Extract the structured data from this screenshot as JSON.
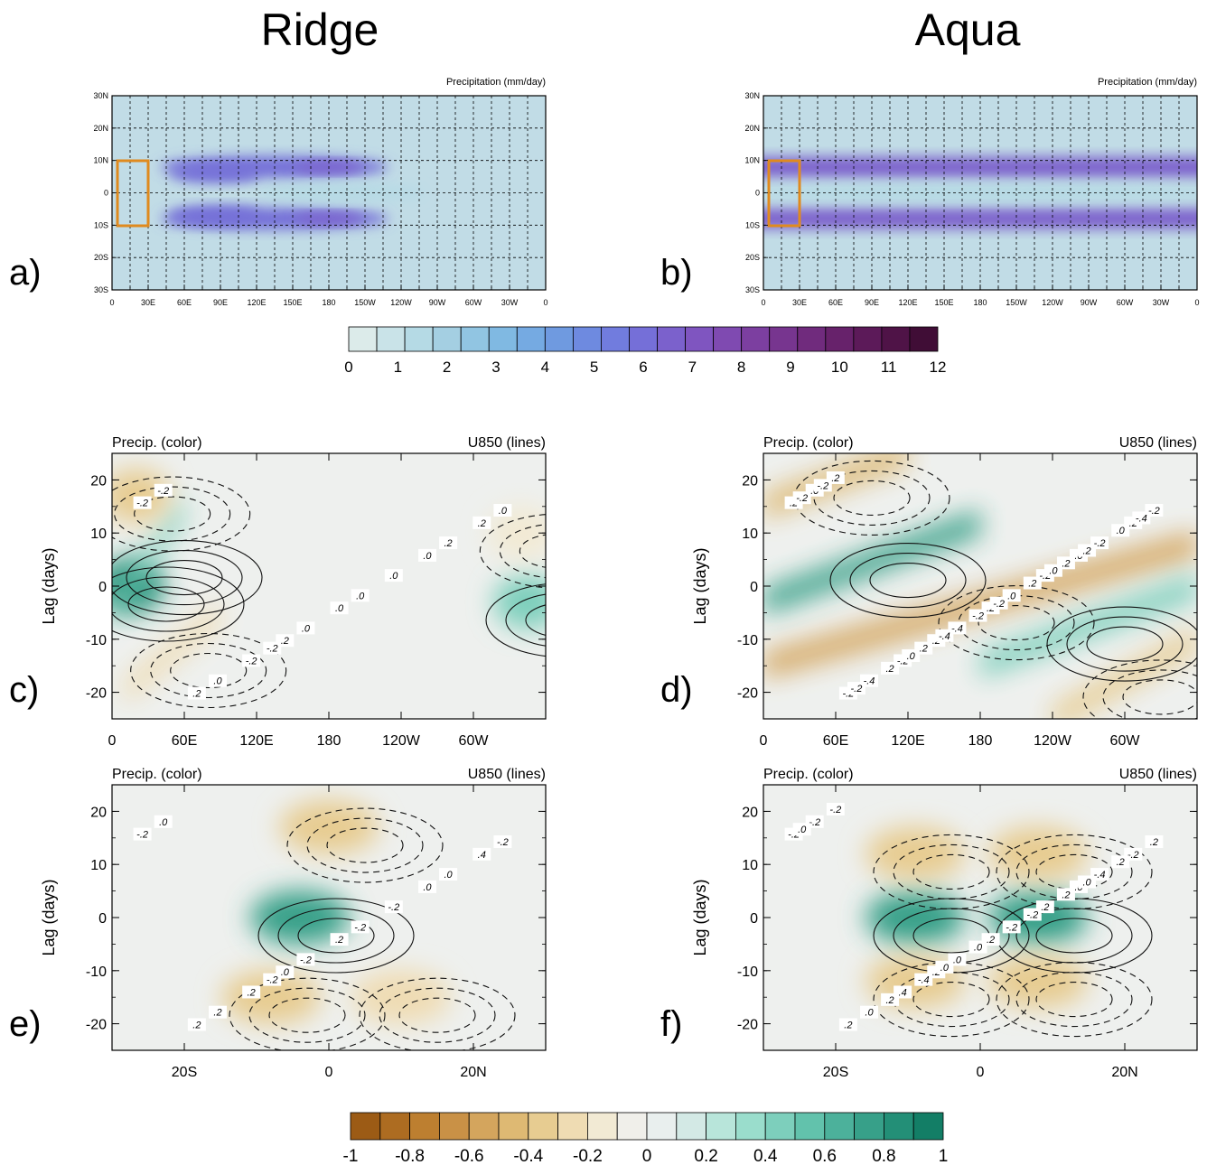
{
  "titles": {
    "left": "Ridge",
    "right": "Aqua"
  },
  "panel_labels": [
    "a)",
    "b)",
    "c)",
    "d)",
    "e)",
    "f)"
  ],
  "map_panels": {
    "field_label": "Precipitation (mm/day)",
    "lat_ticks": [
      "30N",
      "20N",
      "10N",
      "0",
      "10S",
      "20S",
      "30S"
    ],
    "lon_ticks": [
      "0",
      "30E",
      "60E",
      "90E",
      "120E",
      "150E",
      "180",
      "150W",
      "120W",
      "90W",
      "60W",
      "30W",
      "0"
    ]
  },
  "lag_panels": {
    "left_label": "Precip. (color)",
    "right_label": "U850 (lines)",
    "ylabel": "Lag (days)",
    "y_ticks": [
      "20",
      "10",
      "0",
      "-10",
      "-20"
    ],
    "lon_ticks": [
      "0",
      "60E",
      "120E",
      "180",
      "120W",
      "60W"
    ],
    "lat_ticks": [
      "20S",
      "0",
      "20N"
    ]
  },
  "colorbar_precip": {
    "ticks": [
      "0",
      "1",
      "2",
      "3",
      "4",
      "5",
      "6",
      "7",
      "8",
      "9",
      "10",
      "11",
      "12"
    ],
    "colors": [
      "#dcebea",
      "#c9e3e8",
      "#b5dae5",
      "#a4cfe2",
      "#91c5e2",
      "#80b9e2",
      "#75aae2",
      "#6f9ae0",
      "#6e8ae0",
      "#717cde",
      "#756fd8",
      "#7b61cc",
      "#7f55c0",
      "#7f4ab1",
      "#7c3fa0",
      "#77358f",
      "#702b7d",
      "#67226b",
      "#5c1a59",
      "#4f1347",
      "#400d36"
    ]
  },
  "colorbar_anom": {
    "ticks": [
      "-1",
      "-0.8",
      "-0.6",
      "-0.4",
      "-0.2",
      "0",
      "0.2",
      "0.4",
      "0.6",
      "0.8",
      "1"
    ],
    "colors": [
      "#9c5b15",
      "#ad6c21",
      "#bd7f30",
      "#c99146",
      "#d4a55d",
      "#deb973",
      "#e7cc91",
      "#efdcb3",
      "#f2ead4",
      "#f0efea",
      "#e9efee",
      "#d3e9e5",
      "#b8e5da",
      "#9addcc",
      "#7dcfbc",
      "#62c2ac",
      "#4cb19b",
      "#37a089",
      "#238f77",
      "#137e66"
    ]
  },
  "chart_data": [
    {
      "type": "heatmap",
      "panel": "a)",
      "column_title": "Ridge",
      "field": "Precipitation (mm/day)",
      "x": "longitude 0 to 360",
      "y": "latitude 30S to 30N",
      "colorbar_range": [
        0,
        12
      ],
      "features": [
        {
          "kind": "precip_band",
          "lat": 8,
          "lon_start": 40,
          "lon_end": 230,
          "peak_lon": 180,
          "peak_value": 6.5
        },
        {
          "kind": "precip_band",
          "lat": -8,
          "lon_start": 40,
          "lon_end": 230,
          "peak_lon": 180,
          "peak_value": 6.5
        },
        {
          "kind": "precip_max",
          "lat": 6,
          "lon": 85,
          "value": 5.5
        },
        {
          "kind": "precip_max",
          "lat": -7,
          "lon": 85,
          "value": 5.5
        },
        {
          "kind": "equatorial_min",
          "lat": 0,
          "lon_start": 120,
          "lon_end": 260,
          "value": 1
        }
      ],
      "box": {
        "lon": [
          5,
          30
        ],
        "lat": [
          -10,
          10
        ]
      }
    },
    {
      "type": "heatmap",
      "panel": "b)",
      "column_title": "Aqua",
      "field": "Precipitation (mm/day)",
      "x": "longitude 0 to 360",
      "y": "latitude 30S to 30N",
      "colorbar_range": [
        0,
        12
      ],
      "features": [
        {
          "kind": "zonal_band",
          "lat": 8,
          "peak_value": 6
        },
        {
          "kind": "zonal_band",
          "lat": -8,
          "peak_value": 6
        },
        {
          "kind": "equatorial_min",
          "lat": 0,
          "value": 1
        }
      ],
      "box": {
        "lon": [
          5,
          30
        ],
        "lat": [
          -10,
          10
        ]
      }
    },
    {
      "type": "heatmap",
      "panel": "c)",
      "column_title": "Ridge",
      "color_field": "Precip. (color)",
      "line_field": "U850 (lines)",
      "x": "longitude 0 to 360",
      "ylabel": "Lag (days)",
      "ylim": [
        -25,
        25
      ],
      "colorbar_range": [
        -1,
        1
      ],
      "features": [
        {
          "kind": "positive_max",
          "lon": 15,
          "lag": 0,
          "value": 0.9
        },
        {
          "kind": "positive_propagation",
          "lon_start": 0,
          "lag_start": -5,
          "lon_end": 60,
          "lag_end": 15,
          "value": 0.5
        },
        {
          "kind": "negative_propagation",
          "lon_start": 10,
          "lag_start": -20,
          "lon_end": 90,
          "lag_end": -5,
          "value": -0.3
        },
        {
          "kind": "negative_max",
          "lon": 20,
          "lag": 17,
          "value": -0.35
        },
        {
          "kind": "positive_max",
          "lon": 345,
          "lag": -3,
          "value": 0.5
        },
        {
          "kind": "negative_max",
          "lon": 340,
          "lag": 10,
          "value": -0.2
        }
      ],
      "contour_labels": [
        "-.2",
        ".2",
        ".0",
        ".2",
        ".0",
        ".2",
        "-.2",
        ".0",
        "-.2",
        ".0",
        ".2",
        ".0",
        ".0",
        ".0",
        "-.2"
      ]
    },
    {
      "type": "heatmap",
      "panel": "d)",
      "column_title": "Aqua",
      "color_field": "Precip. (color)",
      "line_field": "U850 (lines)",
      "x": "longitude 0 to 360",
      "ylabel": "Lag (days)",
      "ylim": [
        -25,
        25
      ],
      "colorbar_range": [
        -1,
        1
      ],
      "features": [
        {
          "kind": "positive_band",
          "lon_start": 0,
          "lag_start": -3,
          "lon_end": 180,
          "lag_end": 12,
          "value": 0.8
        },
        {
          "kind": "negative_band",
          "lon_start": 0,
          "lag_start": 15,
          "lon_end": 120,
          "lag_end": 25,
          "value": -0.5
        },
        {
          "kind": "negative_band",
          "lon_start": 0,
          "lag_start": -15,
          "lon_end": 360,
          "lag_end": 8,
          "value": -0.6
        },
        {
          "kind": "positive_band",
          "lon_start": 180,
          "lag_start": -15,
          "lon_end": 360,
          "lag_end": 0,
          "value": 0.5
        },
        {
          "kind": "negative_band",
          "lon_start": 240,
          "lag_start": -25,
          "lon_end": 360,
          "lag_end": -10,
          "value": -0.4
        }
      ],
      "contour_labels": [
        ".2",
        ".2",
        ".0",
        "-.2",
        ".2",
        ".2",
        "-.2",
        "-.2",
        ".0",
        "-.4",
        "-.2",
        "-.4",
        ".0",
        "-.2",
        ".2",
        ".2",
        ".2",
        "-.2",
        ".0",
        ".2",
        ".2",
        "-.2",
        "-.4",
        ".2",
        "-.2",
        "-.2",
        "-.4",
        ".0",
        ".0",
        "-.2"
      ]
    },
    {
      "type": "heatmap",
      "panel": "e)",
      "column_title": "Ridge",
      "color_field": "Precip. (color)",
      "line_field": "U850 (lines)",
      "x": "latitude 30S to 30N",
      "ylabel": "Lag (days)",
      "ylim": [
        -25,
        25
      ],
      "colorbar_range": [
        -1,
        1
      ],
      "features": [
        {
          "kind": "positive_max",
          "lat": -4,
          "lag": 0,
          "value": 0.8
        },
        {
          "kind": "negative_max",
          "lat": -8,
          "lag": -15,
          "value": -0.4
        },
        {
          "kind": "negative_max",
          "lat": 10,
          "lag": -15,
          "value": -0.3
        },
        {
          "kind": "negative_max",
          "lat": 0,
          "lag": 17,
          "value": -0.4
        }
      ],
      "contour_labels": [
        "-.2",
        ".0",
        ".0",
        ".2",
        ".2",
        ".4",
        ".2",
        "-.2",
        ".0",
        "-.2",
        ".0",
        ".2",
        "-.2",
        "-.2",
        "-.2"
      ]
    },
    {
      "type": "heatmap",
      "panel": "f)",
      "column_title": "Aqua",
      "color_field": "Precip. (color)",
      "line_field": "U850 (lines)",
      "x": "latitude 30S to 30N",
      "ylabel": "Lag (days)",
      "ylim": [
        -25,
        25
      ],
      "colorbar_range": [
        -1,
        1
      ],
      "features": [
        {
          "kind": "positive_max",
          "lat": -9,
          "lag": 0,
          "value": 0.8
        },
        {
          "kind": "positive_max",
          "lat": 8,
          "lag": 0,
          "value": 0.8
        },
        {
          "kind": "negative_max",
          "lat": -9,
          "lag": 12,
          "value": -0.4
        },
        {
          "kind": "negative_max",
          "lat": 8,
          "lag": 12,
          "value": -0.4
        },
        {
          "kind": "negative_max",
          "lat": -9,
          "lag": -12,
          "value": -0.4
        },
        {
          "kind": "negative_max",
          "lat": 8,
          "lag": -12,
          "value": -0.4
        }
      ],
      "contour_labels": [
        "-.2",
        ".2",
        ".0",
        ".2",
        ".2",
        "-.2",
        ".4",
        ".2",
        "-.2",
        ".0",
        "-.4",
        ".0",
        "-.2",
        ".2",
        "-.4",
        ".2",
        "-.2",
        ".0",
        ".2",
        ".2",
        "-.2",
        ".0",
        ".0",
        ".0"
      ]
    }
  ]
}
